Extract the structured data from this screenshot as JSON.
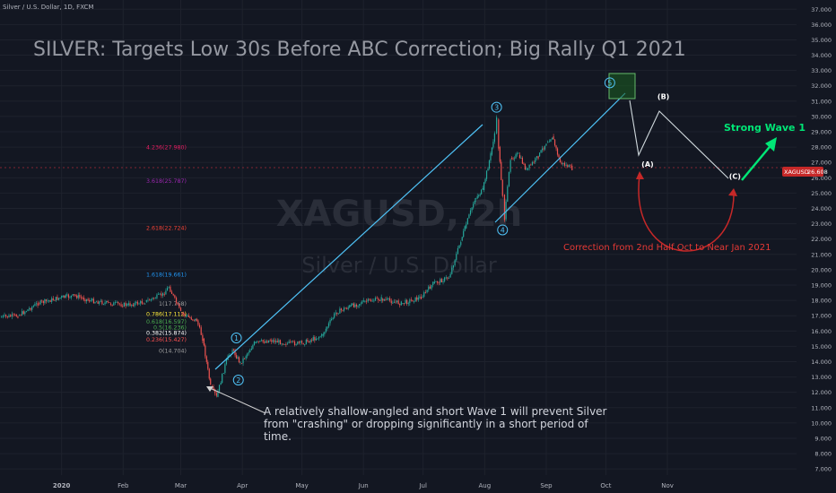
{
  "header": {
    "symbol_line": "Silver / U.S. Dollar, 1D, FXCM",
    "title": "SILVER: Targets Low 30s Before ABC Correction; Big Rally Q1 2021"
  },
  "watermark": {
    "ticker": "XAGUSD, 2h",
    "name": "Silver / U.S. Dollar"
  },
  "price_badge": {
    "label": "XAGUSD",
    "value": "26.608"
  },
  "fib_levels": [
    {
      "label": "4.236(27.980)",
      "price": 27.98,
      "color": "#e91e63"
    },
    {
      "label": "3.618(25.787)",
      "price": 25.787,
      "color": "#9c27b0"
    },
    {
      "label": "2.618(22.724)",
      "price": 22.724,
      "color": "#f44336"
    },
    {
      "label": "1.618(19.661)",
      "price": 19.661,
      "color": "#2196f3"
    },
    {
      "label": "1(17.768)",
      "price": 17.768,
      "color": "#a0a0a0"
    },
    {
      "label": "0.786(17.112)",
      "price": 17.112,
      "color": "#ffeb3b"
    },
    {
      "label": "0.618(16.597)",
      "price": 16.597,
      "color": "#4caf50"
    },
    {
      "label": "0.5(16.236)",
      "price": 16.236,
      "color": "#4caf50"
    },
    {
      "label": "0.382(15.874)",
      "price": 15.874,
      "color": "#ffffff"
    },
    {
      "label": "0.236(15.427)",
      "price": 15.427,
      "color": "#ff5252"
    },
    {
      "label": "0(14.704)",
      "price": 14.704,
      "color": "#a0a0a0"
    }
  ],
  "wave_labels": [
    {
      "text": "1",
      "date": "2020-03-29",
      "price": 15.55
    },
    {
      "text": "2",
      "date": "2020-03-30",
      "price": 12.8
    },
    {
      "text": "3",
      "date": "2020-08-07",
      "price": 30.6
    },
    {
      "text": "4",
      "date": "2020-08-10",
      "price": 22.6
    },
    {
      "text": "5",
      "date": "2020-10-03",
      "price": 32.2
    }
  ],
  "abc_labels": [
    {
      "text": "(A)",
      "date": "2020-10-22",
      "price": 26.9
    },
    {
      "text": "(B)",
      "date": "2020-10-30",
      "price": 31.3
    },
    {
      "text": "(C)",
      "date": "2020-12-05",
      "price": 26.1
    }
  ],
  "annotations": {
    "wave1_note": [
      "A relatively shallow-angled and short Wave 1 will prevent Silver",
      "from \"crashing\" or dropping significantly in a short period of",
      "time."
    ],
    "correction": "Correction from 2nd Half Oct to Near Jan 2021",
    "strong_wave": "Strong Wave 1"
  },
  "chart_data": {
    "type": "line",
    "title": "SILVER: Targets Low 30s Before ABC Correction; Big Rally Q1 2021",
    "xlabel": "",
    "ylabel": "",
    "x_ticks": [
      "2020",
      "Feb",
      "Mar",
      "Apr",
      "May",
      "Jun",
      "Jul",
      "Aug",
      "Sep",
      "Oct",
      "Nov"
    ],
    "y_ticks": [
      "7.000",
      "8.000",
      "9.000",
      "10.000",
      "11.000",
      "12.000",
      "13.000",
      "14.000",
      "15.000",
      "16.000",
      "17.000",
      "18.000",
      "19.000",
      "20.000",
      "21.000",
      "22.000",
      "23.000",
      "24.000",
      "25.000",
      "26.000",
      "27.000",
      "28.000",
      "29.000",
      "30.000",
      "31.000",
      "32.000",
      "33.000",
      "34.000",
      "35.000",
      "36.000",
      "37.000"
    ],
    "ylim": [
      6.6,
      37.6
    ],
    "xlim": [
      "2019-12-01",
      "2021-01-05"
    ],
    "series": [
      {
        "x": [
          "2019-12-01",
          "2019-12-10",
          "2019-12-20",
          "2020-01-01",
          "2020-01-08",
          "2020-01-15",
          "2020-01-25",
          "2020-02-03",
          "2020-02-12",
          "2020-02-21",
          "2020-02-24",
          "2020-03-01",
          "2020-03-05",
          "2020-03-09",
          "2020-03-12",
          "2020-03-16",
          "2020-03-19",
          "2020-03-24",
          "2020-03-27",
          "2020-03-31",
          "2020-04-07",
          "2020-04-15",
          "2020-04-23",
          "2020-05-01",
          "2020-05-11",
          "2020-05-18",
          "2020-05-25",
          "2020-06-01",
          "2020-06-10",
          "2020-06-20",
          "2020-06-30",
          "2020-07-06",
          "2020-07-14",
          "2020-07-20",
          "2020-07-22",
          "2020-07-27",
          "2020-07-31",
          "2020-08-04",
          "2020-08-06",
          "2020-08-07",
          "2020-08-08",
          "2020-08-10",
          "2020-08-11",
          "2020-08-14",
          "2020-08-18",
          "2020-08-22",
          "2020-08-28",
          "2020-09-01",
          "2020-09-04",
          "2020-09-08",
          "2020-09-14"
        ],
        "values": [
          16.9,
          17.0,
          17.8,
          18.2,
          18.3,
          18.0,
          17.8,
          17.7,
          17.9,
          18.4,
          18.9,
          17.2,
          16.9,
          16.7,
          15.5,
          12.4,
          11.7,
          14.1,
          14.8,
          13.9,
          15.2,
          15.4,
          15.2,
          15.2,
          15.7,
          17.2,
          17.6,
          17.9,
          18.1,
          17.8,
          18.2,
          19.1,
          19.5,
          21.9,
          22.7,
          24.6,
          25.2,
          27.5,
          28.9,
          29.8,
          28.0,
          24.9,
          23.3,
          27.3,
          27.5,
          26.5,
          27.4,
          28.3,
          28.7,
          27.0,
          26.6
        ]
      }
    ]
  }
}
